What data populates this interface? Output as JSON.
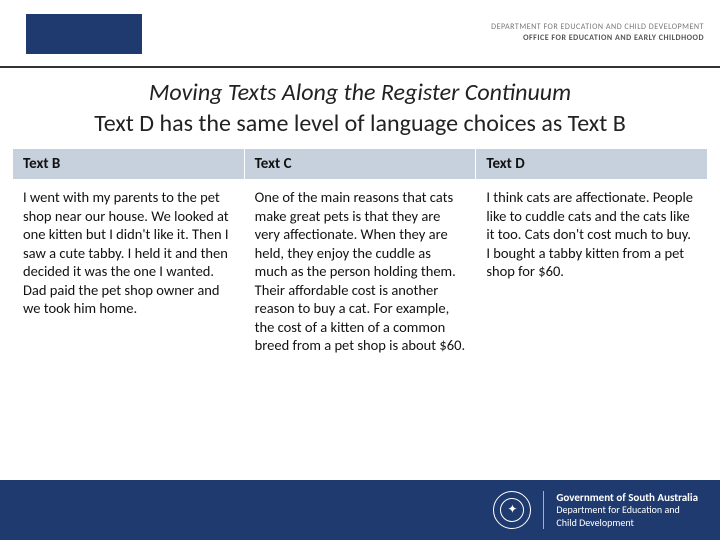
{
  "header": {
    "dept_line1": "DEPARTMENT FOR EDUCATION AND CHILD DEVELOPMENT",
    "dept_line2": "OFFICE FOR EDUCATION AND EARLY CHILDHOOD"
  },
  "title": {
    "line1": "Moving Texts Along the Register Continuum",
    "line2": "Text D has the same level of language choices as Text B"
  },
  "table": {
    "headers": [
      "Text B",
      "Text C",
      "Text D"
    ],
    "cells": [
      "I went with my parents to the pet shop near our house. We looked at one kitten but I didn't like it. Then I saw a cute tabby. I held it and then decided it was the one I wanted. Dad paid the pet shop owner and we took him home.",
      "One of the main reasons that cats make great pets is that they are very affectionate. When they are held, they enjoy the cuddle as much as the person holding them. Their affordable cost is another reason to buy a cat. For example,  the cost of a kitten of a common breed from a pet shop is about $60.",
      "I think cats are affectionate. People like to cuddle cats and the cats like it too. Cats don't cost much to buy. I bought a tabby kitten from a pet shop for $60."
    ]
  },
  "footer": {
    "line1": "Government of South Australia",
    "line2": "Department for Education and",
    "line3": "Child Development"
  },
  "colors": {
    "brand_blue": "#1f3a6e",
    "table_header_bg": "#c7d1de"
  }
}
